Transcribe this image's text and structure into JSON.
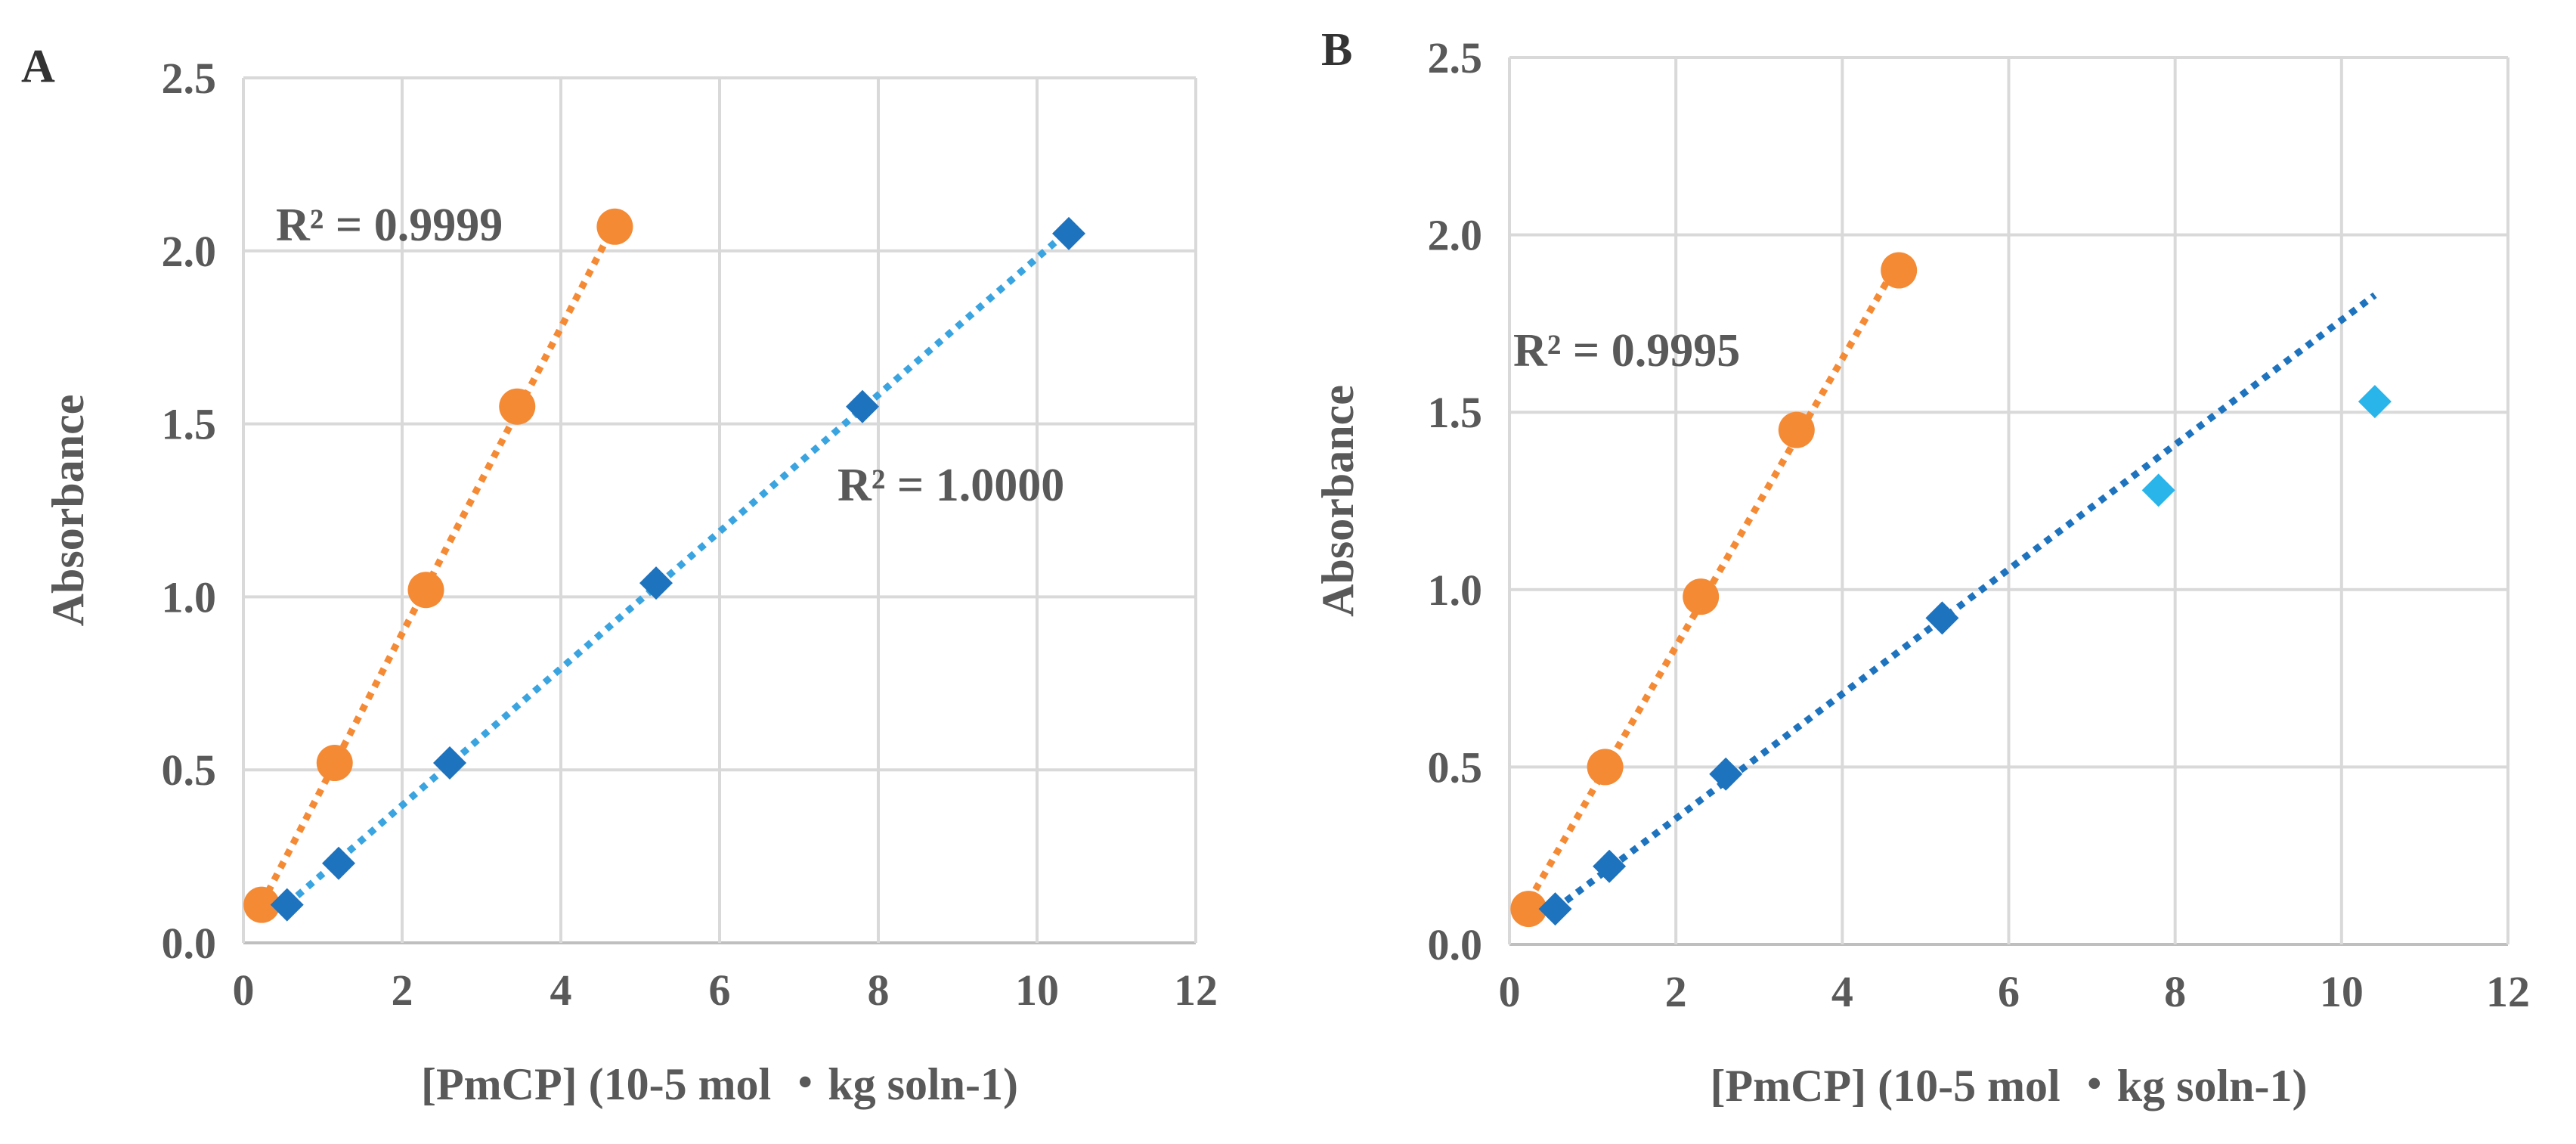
{
  "chart_data": [
    {
      "type": "scatter",
      "panel_label": "A",
      "xlabel": "[PmCP] (10-5 mol ・kg soln-1)",
      "ylabel": "Absorbance",
      "xlim": [
        0,
        12
      ],
      "ylim": [
        0.0,
        2.5
      ],
      "x_ticks": [
        "0",
        "2",
        "4",
        "6",
        "8",
        "10",
        "12"
      ],
      "y_ticks": [
        "0.0",
        "0.5",
        "1.0",
        "1.5",
        "2.0",
        "2.5"
      ],
      "grid": true,
      "series": [
        {
          "name": "orange",
          "marker": "circle",
          "color": "#f58a35",
          "x": [
            0.23,
            1.15,
            2.3,
            3.45,
            4.68
          ],
          "y": [
            0.11,
            0.52,
            1.02,
            1.55,
            2.07
          ],
          "trendline": {
            "style": "dotted",
            "color": "#f58a35",
            "x_range": [
              0.23,
              4.68
            ]
          },
          "r2": "R² = 0.9999"
        },
        {
          "name": "blue",
          "marker": "diamond",
          "color": "#1e73be",
          "x": [
            0.55,
            1.2,
            2.6,
            5.2,
            7.8,
            10.4
          ],
          "y": [
            0.11,
            0.23,
            0.52,
            1.04,
            1.55,
            2.05
          ],
          "trendline": {
            "style": "dotted",
            "color": "#3aa4e0",
            "x_range": [
              0.55,
              10.4
            ]
          },
          "r2": "R² = 1.0000"
        }
      ]
    },
    {
      "type": "scatter",
      "panel_label": "B",
      "xlabel": "[PmCP] (10-5 mol ・kg soln-1)",
      "ylabel": "Absorbance",
      "xlim": [
        0,
        12
      ],
      "ylim": [
        0.0,
        2.5
      ],
      "x_ticks": [
        "0",
        "2",
        "4",
        "6",
        "8",
        "10",
        "12"
      ],
      "y_ticks": [
        "0.0",
        "0.5",
        "1.0",
        "1.5",
        "2.0",
        "2.5"
      ],
      "grid": true,
      "series": [
        {
          "name": "orange",
          "marker": "circle",
          "color": "#f58a35",
          "x": [
            0.23,
            1.15,
            2.3,
            3.45,
            4.68
          ],
          "y": [
            0.1,
            0.5,
            0.98,
            1.45,
            1.9
          ],
          "trendline": {
            "style": "dotted",
            "color": "#f58a35",
            "x_range": [
              0.23,
              4.68
            ]
          },
          "r2": "R² = 0.9995"
        },
        {
          "name": "blue",
          "marker": "diamond",
          "color": "#1e73be",
          "x": [
            0.55,
            1.2,
            2.6,
            5.2
          ],
          "y": [
            0.1,
            0.22,
            0.48,
            0.92
          ],
          "trendline": {
            "style": "dotted",
            "color": "#1e73be",
            "x_range": [
              0.55,
              10.4
            ],
            "y_range": [
              0.1,
              1.83
            ]
          },
          "r2": ""
        },
        {
          "name": "light-blue",
          "marker": "diamond",
          "color": "#29b5ea",
          "x": [
            7.8,
            10.4
          ],
          "y": [
            1.28,
            1.53
          ]
        }
      ]
    }
  ]
}
